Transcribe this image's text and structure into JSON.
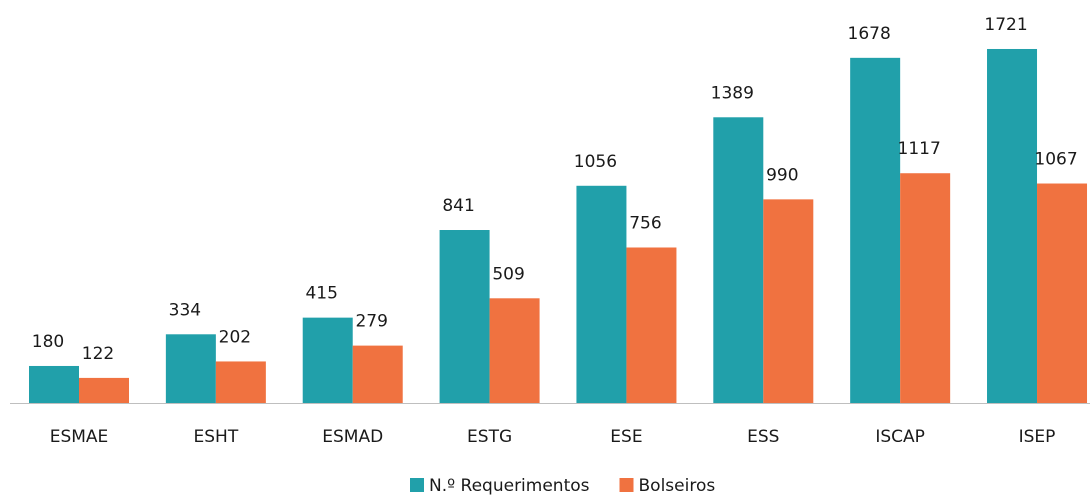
{
  "chart_data": {
    "type": "bar",
    "categories": [
      "ESMAE",
      "ESHT",
      "ESMAD",
      "ESTG",
      "ESE",
      "ESS",
      "ISCAP",
      "ISEP"
    ],
    "series": [
      {
        "name": "N.º Requerimentos",
        "color": "#21a0aa",
        "values": [
          180,
          334,
          415,
          841,
          1056,
          1389,
          1678,
          1721
        ]
      },
      {
        "name": "Bolseiros",
        "color": "#f07240",
        "values": [
          122,
          202,
          279,
          509,
          756,
          990,
          1117,
          1067
        ]
      }
    ],
    "legend": "bottom"
  }
}
